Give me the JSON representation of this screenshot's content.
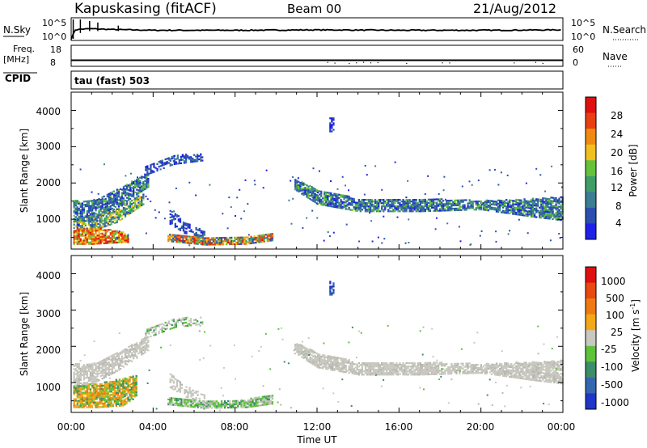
{
  "header": {
    "station": "Kapuskasing (fitACF)",
    "beam": "Beam 00",
    "date": "21/Aug/2012"
  },
  "noise_panel": {
    "left_label": "N.Sky",
    "right_label": "N.Search",
    "left_ticks": [
      "10^5",
      "10^0"
    ],
    "right_ticks": [
      "10^5",
      "10^0"
    ]
  },
  "freq_panel": {
    "left_label_1": "Freq.",
    "left_label_2": "[MHz]",
    "right_label": "Nave",
    "left_ticks": [
      "18",
      "8"
    ],
    "right_ticks": [
      "60",
      "0"
    ]
  },
  "cpid": {
    "label": "CPID",
    "value": "tau (fast) 503"
  },
  "axes": {
    "ylabel": "Slant Range [km]",
    "xlabel": "Time UT",
    "y_ticks": [
      "4000",
      "3000",
      "2000",
      "1000"
    ],
    "x_ticks": [
      "00:00",
      "04:00",
      "08:00",
      "12:00",
      "16:00",
      "20:00",
      "00:00"
    ]
  },
  "power_scale": {
    "label": "Power [dB]",
    "ticks": [
      "28",
      "24",
      "20",
      "16",
      "12",
      "8",
      "4"
    ],
    "colors": [
      "#1f20e8",
      "#2b4fb0",
      "#3b7d92",
      "#3f9d68",
      "#66c23a",
      "#f0c020",
      "#f08a10",
      "#e84010",
      "#e01010"
    ]
  },
  "velocity_scale": {
    "label": "Velocity [m s",
    "label_sup": "-1",
    "label_end": "]",
    "ticks": [
      "1000",
      "500",
      "100",
      "25",
      "-25",
      "-100",
      "-500",
      "-1000"
    ],
    "colors": [
      "#1f36c8",
      "#3566b0",
      "#3a8e68",
      "#5ec23a",
      "#c8c8c0",
      "#f2a818",
      "#f07a12",
      "#e84a10",
      "#e01010"
    ]
  },
  "chart_data": [
    {
      "type": "line",
      "title": "",
      "series": [
        {
          "name": "N.Sky",
          "x_hours": [
            0,
            0.2,
            0.5,
            1,
            2,
            4,
            8,
            12,
            16,
            20,
            24
          ],
          "values_log10": [
            0,
            2.3,
            2.5,
            2.6,
            2.4,
            2.2,
            2.2,
            2.3,
            2.2,
            2.2,
            2.3
          ]
        }
      ],
      "xlim": [
        0,
        24
      ]
    },
    {
      "type": "line",
      "series": [
        {
          "name": "Freq.",
          "x_hours": [
            0,
            24
          ],
          "values": [
            10.5,
            10.5
          ]
        },
        {
          "name": "Nave",
          "x_hours": [
            0,
            4,
            8,
            12,
            16,
            20,
            24
          ],
          "values": [
            12,
            12,
            13,
            14,
            15,
            15,
            14
          ]
        }
      ],
      "ylim": [
        8,
        18
      ],
      "xlim": [
        0,
        24
      ]
    },
    {
      "type": "heatmap",
      "title": "Power",
      "xlabel": "Time UT",
      "ylabel": "Slant Range [km]",
      "xlim": [
        0,
        24
      ],
      "ylim": [
        180,
        4500
      ],
      "zlabel": "Power [dB]",
      "zlim": [
        0,
        32
      ],
      "regions": [
        {
          "t0": 0.1,
          "t1": 2.6,
          "r0": 300,
          "r1": 800,
          "z": 24
        },
        {
          "t0": 0.1,
          "t1": 3.8,
          "r0": 900,
          "r1": 2200,
          "z": 8
        },
        {
          "t0": 3.5,
          "t1": 6.5,
          "r0": 2200,
          "r1": 2800,
          "z": 4
        },
        {
          "t0": 4.5,
          "t1": 9.8,
          "r0": 300,
          "r1": 600,
          "z": 22
        },
        {
          "t0": 10.8,
          "t1": 24,
          "r0": 1000,
          "r1": 2000,
          "z": 6
        }
      ]
    },
    {
      "type": "heatmap",
      "title": "Velocity",
      "xlabel": "Time UT",
      "ylabel": "Slant Range [km]",
      "xlim": [
        0,
        24
      ],
      "ylim": [
        180,
        4500
      ],
      "zlabel": "Velocity [m s-1]",
      "zlim": [
        -1000,
        1000
      ],
      "regions": [
        {
          "t0": 0.1,
          "t1": 2.5,
          "r0": 300,
          "r1": 900,
          "z": -100
        },
        {
          "t0": 0.1,
          "t1": 3.8,
          "r0": 900,
          "r1": 2200,
          "z": 0
        },
        {
          "t0": 4.5,
          "t1": 9.8,
          "r0": 300,
          "r1": 600,
          "z": 60
        },
        {
          "t0": 10.8,
          "t1": 24,
          "r0": 1000,
          "r1": 2000,
          "z": 0
        }
      ]
    }
  ]
}
